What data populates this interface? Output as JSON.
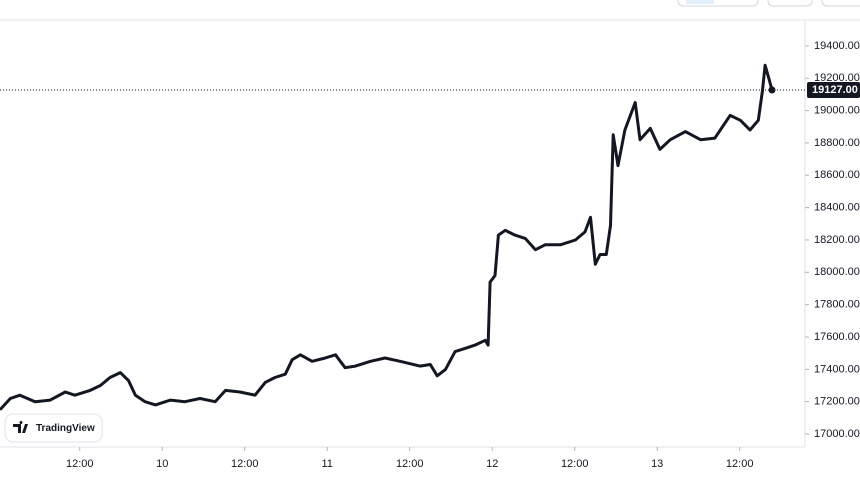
{
  "chart_data": {
    "type": "line",
    "color": "#131722",
    "watermark": "TradingView",
    "x": [
      0.4,
      1.9,
      3.3,
      5.5,
      7.7,
      9.9,
      11.3,
      13.5,
      15.0,
      16.4,
      17.9,
      19.1,
      20.1,
      21.5,
      23.0,
      25.2,
      27.3,
      29.5,
      31.7,
      33.2,
      35.3,
      37.5,
      39.0,
      40.4,
      41.9,
      42.9,
      44.1,
      45.8,
      47.7,
      49.2,
      50.6,
      52.1,
      54.3,
      56.4,
      58.6,
      61.5,
      63.0,
      64.0,
      65.2,
      66.6,
      68.1,
      69.5,
      71.0,
      71.4,
      71.7,
      72.4,
      72.9,
      73.9,
      75.3,
      76.8,
      78.3,
      79.7,
      81.9,
      84.1,
      85.5,
      86.3,
      87.0,
      87.7,
      88.6,
      89.2,
      89.6,
      90.3,
      91.3,
      92.8,
      93.5,
      95.0,
      96.4,
      97.9,
      100.1,
      102.3,
      104.4,
      106.6,
      108.1,
      109.5,
      110.7,
      111.3,
      111.7,
      112.1,
      112.7
    ],
    "values": [
      17150,
      17220,
      17240,
      17200,
      17210,
      17260,
      17240,
      17270,
      17300,
      17350,
      17380,
      17330,
      17240,
      17200,
      17180,
      17210,
      17200,
      17220,
      17200,
      17270,
      17260,
      17240,
      17320,
      17350,
      17370,
      17460,
      17490,
      17450,
      17470,
      17490,
      17410,
      17420,
      17450,
      17470,
      17450,
      17420,
      17430,
      17360,
      17400,
      17510,
      17530,
      17550,
      17580,
      17550,
      17940,
      17980,
      18230,
      18260,
      18230,
      18210,
      18140,
      18170,
      18170,
      18200,
      18250,
      18340,
      18050,
      18110,
      18110,
      18290,
      18850,
      18660,
      18880,
      19050,
      18820,
      18890,
      18760,
      18820,
      18870,
      18820,
      18830,
      18970,
      18940,
      18880,
      18940,
      19120,
      19280,
      19220,
      19127
    ],
    "xlim": [
      0.4,
      117.5
    ],
    "xticks": [
      {
        "value": 12,
        "label": "12:00"
      },
      {
        "value": 24,
        "label": "10"
      },
      {
        "value": 36,
        "label": "12:00"
      },
      {
        "value": 48,
        "label": "11"
      },
      {
        "value": 60,
        "label": "12:00"
      },
      {
        "value": 72,
        "label": "12"
      },
      {
        "value": 84,
        "label": "12:00"
      },
      {
        "value": 96,
        "label": "13"
      },
      {
        "value": 108,
        "label": "12:00"
      }
    ],
    "ylim": [
      16920,
      19560
    ],
    "yticks": [
      {
        "value": 17000,
        "label": "17000.00"
      },
      {
        "value": 17200,
        "label": "17200.00"
      },
      {
        "value": 17400,
        "label": "17400.00"
      },
      {
        "value": 17600,
        "label": "17600.00"
      },
      {
        "value": 17800,
        "label": "17800.00"
      },
      {
        "value": 18000,
        "label": "18000.00"
      },
      {
        "value": 18200,
        "label": "18200.00"
      },
      {
        "value": 18400,
        "label": "18400.00"
      },
      {
        "value": 18600,
        "label": "18600.00"
      },
      {
        "value": 18800,
        "label": "18800.00"
      },
      {
        "value": 19000,
        "label": "19000.00"
      },
      {
        "value": 19200,
        "label": "19200.00"
      },
      {
        "value": 19400,
        "label": "19400.00"
      }
    ],
    "last_price": {
      "value": 19127,
      "label": "19127.00"
    }
  }
}
